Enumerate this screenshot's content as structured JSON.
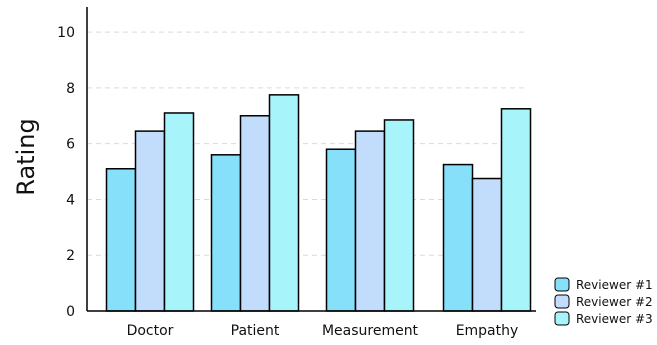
{
  "chart_data": {
    "type": "bar",
    "title": "",
    "xlabel": "",
    "ylabel": "Rating",
    "categories": [
      "Doctor",
      "Patient",
      "Measurement",
      "Empathy"
    ],
    "series": [
      {
        "name": "Reviewer #1",
        "color": "#87e0fa",
        "values": [
          5.1,
          5.6,
          5.8,
          5.25
        ]
      },
      {
        "name": "Reviewer #2",
        "color": "#c2dcfb",
        "values": [
          6.45,
          7.0,
          6.45,
          4.75
        ]
      },
      {
        "name": "Reviewer #3",
        "color": "#a8f4fb",
        "values": [
          7.1,
          7.75,
          6.85,
          7.25
        ]
      }
    ],
    "ylim": [
      0,
      10.9
    ],
    "yticks": [
      0,
      2,
      4,
      6,
      8,
      10
    ],
    "grid": "horizontal dashed",
    "legend_position": "bottom-right"
  }
}
